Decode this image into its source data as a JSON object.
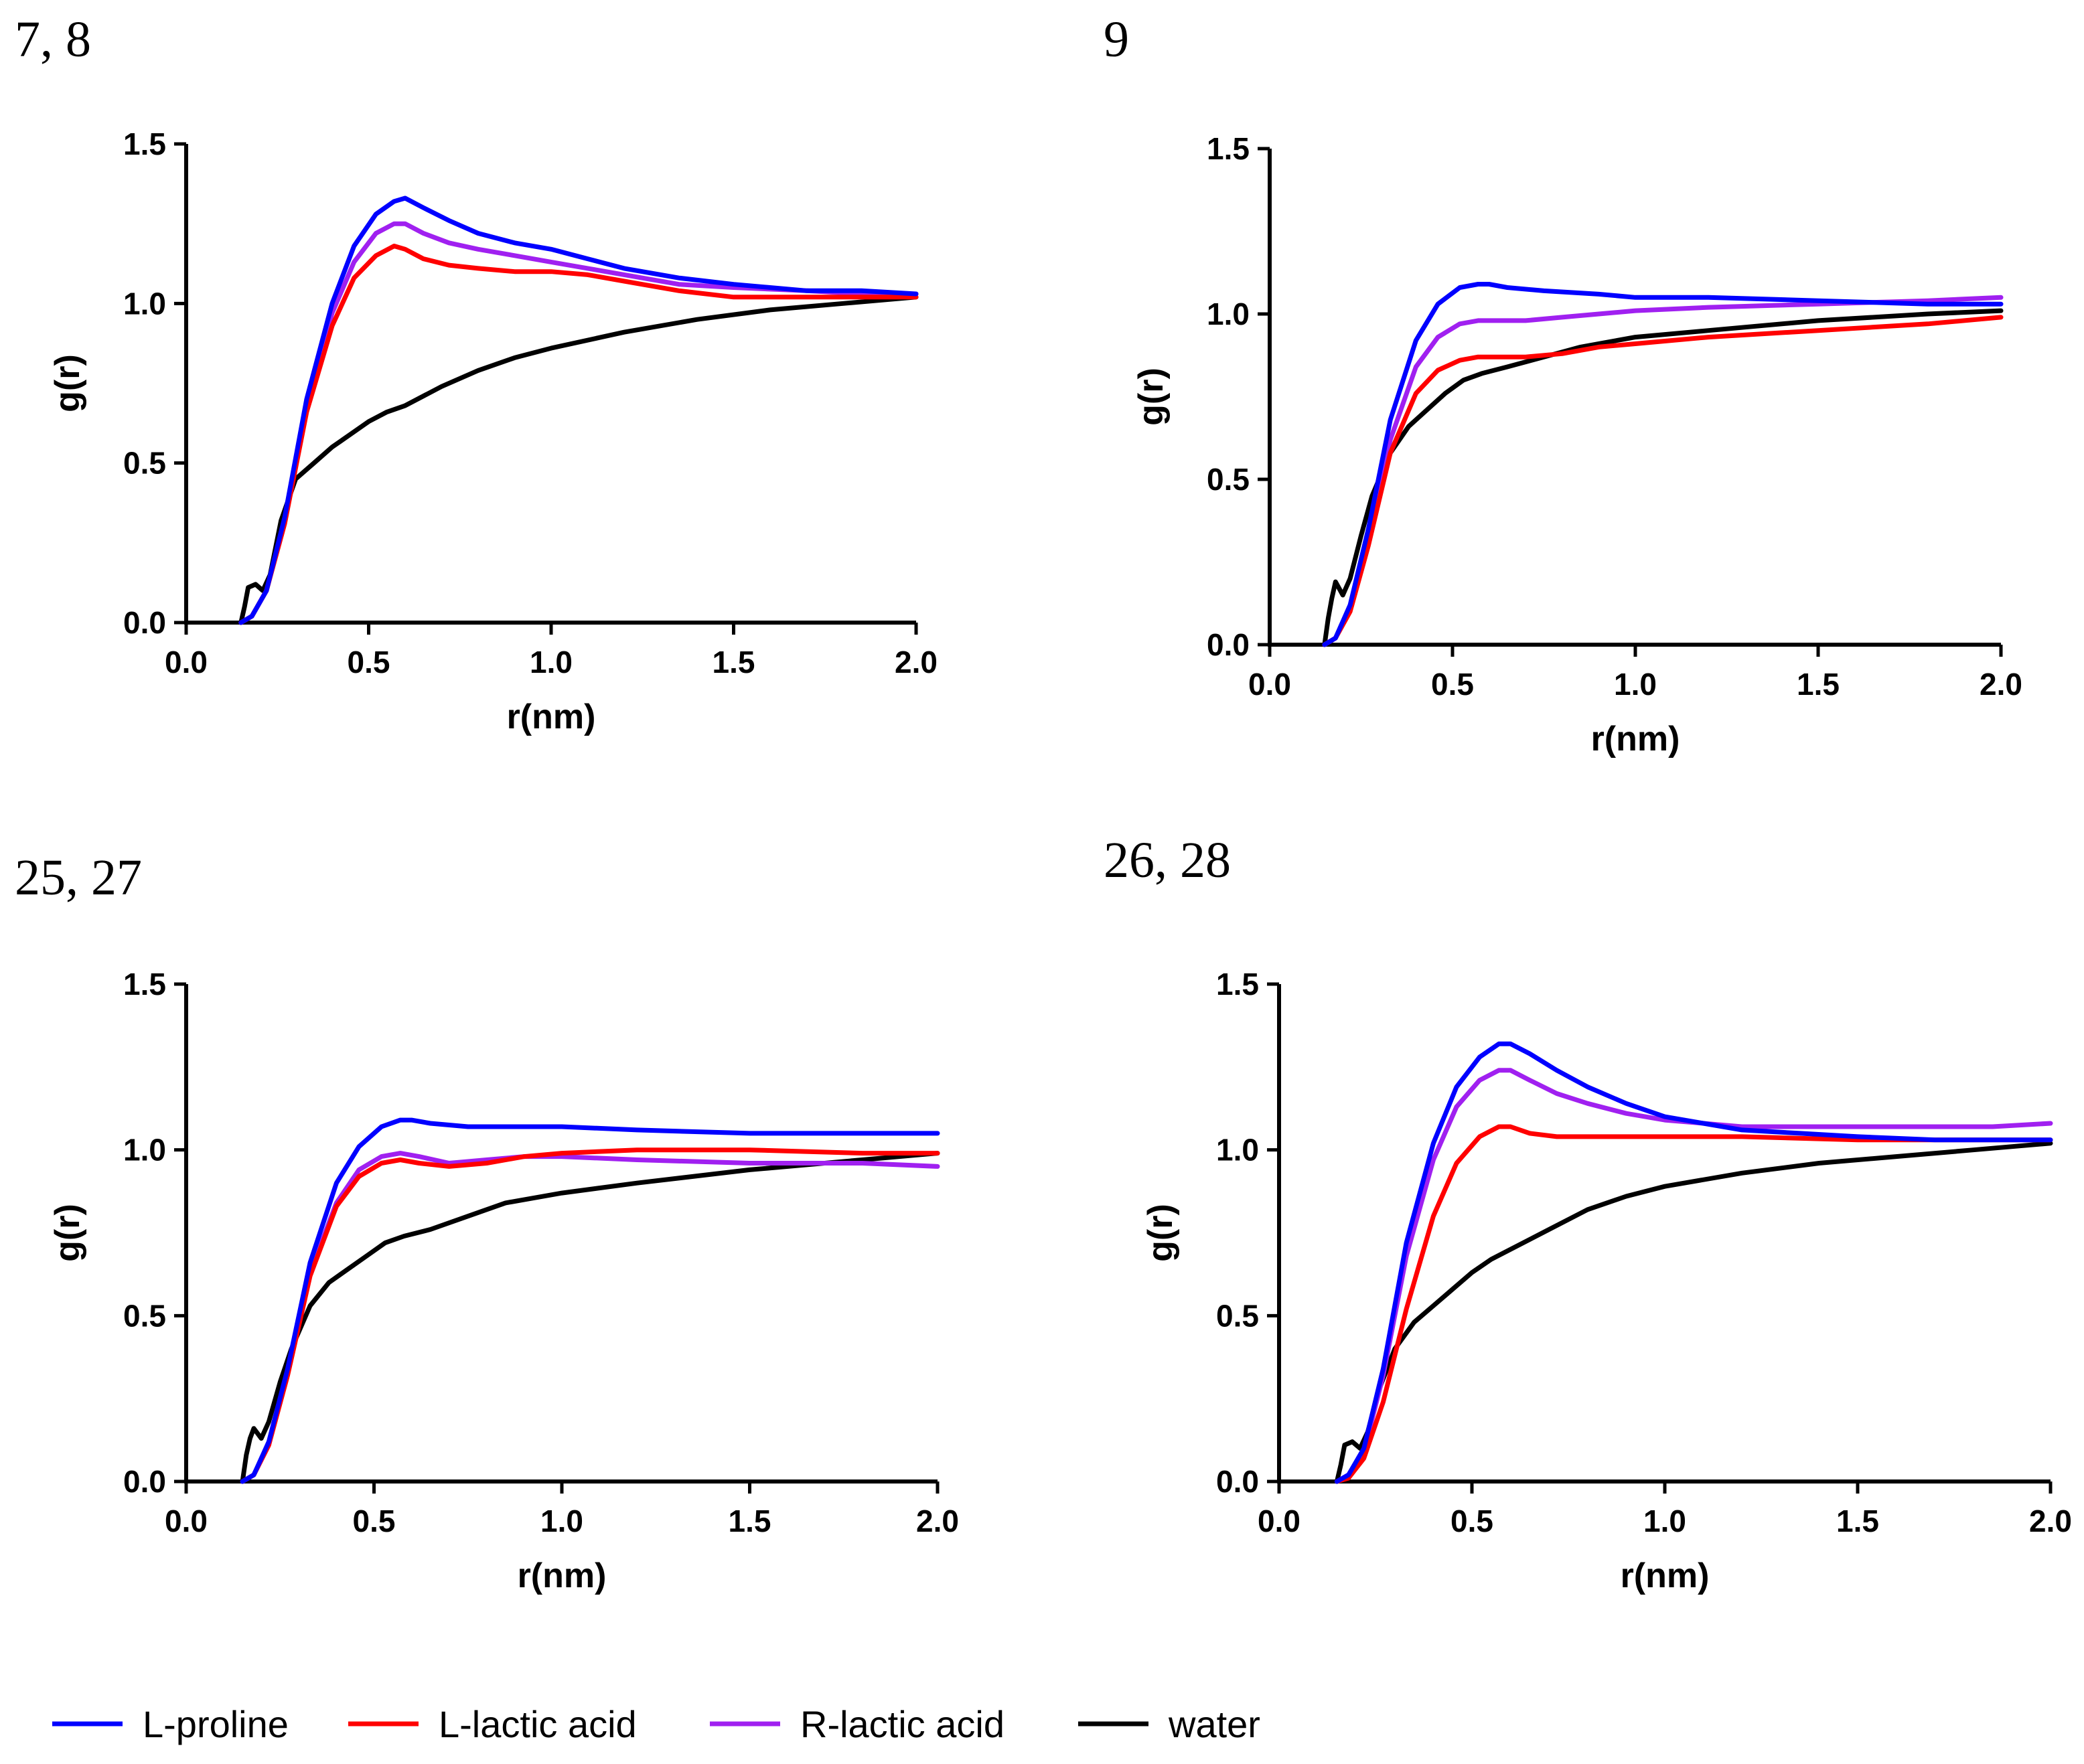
{
  "figure": {
    "legend_label": "Legend"
  },
  "chart_data": [
    {
      "type": "line",
      "panel_label": "7, 8",
      "xlabel": "r(nm)",
      "ylabel": "g(r)",
      "xlim": [
        0,
        2
      ],
      "ylim": [
        0,
        1.5
      ],
      "xticks": [
        "0.0",
        "0.5",
        "1.0",
        "1.5",
        "2.0"
      ],
      "yticks": [
        "0.0",
        "0.5",
        "1.0",
        "1.5"
      ],
      "series": [
        {
          "name": "L-proline",
          "color": "#0000ff",
          "x": [
            0.15,
            0.18,
            0.22,
            0.27,
            0.33,
            0.4,
            0.46,
            0.52,
            0.57,
            0.6,
            0.65,
            0.72,
            0.8,
            0.9,
            1.0,
            1.1,
            1.2,
            1.35,
            1.5,
            1.7,
            1.85,
            2.0
          ],
          "y": [
            0.0,
            0.02,
            0.1,
            0.33,
            0.7,
            1.0,
            1.18,
            1.28,
            1.32,
            1.33,
            1.3,
            1.26,
            1.22,
            1.19,
            1.17,
            1.14,
            1.11,
            1.08,
            1.06,
            1.04,
            1.04,
            1.03
          ]
        },
        {
          "name": "L-lactic acid",
          "color": "#ff0000",
          "x": [
            0.15,
            0.18,
            0.22,
            0.27,
            0.33,
            0.4,
            0.46,
            0.52,
            0.57,
            0.6,
            0.65,
            0.72,
            0.8,
            0.9,
            1.0,
            1.1,
            1.2,
            1.35,
            1.5,
            1.7,
            1.85,
            2.0
          ],
          "y": [
            0.0,
            0.02,
            0.1,
            0.31,
            0.66,
            0.93,
            1.08,
            1.15,
            1.18,
            1.17,
            1.14,
            1.12,
            1.11,
            1.1,
            1.1,
            1.09,
            1.07,
            1.04,
            1.02,
            1.02,
            1.02,
            1.02
          ]
        },
        {
          "name": "R-lactic acid",
          "color": "#a020f0",
          "x": [
            0.15,
            0.18,
            0.22,
            0.27,
            0.33,
            0.4,
            0.46,
            0.52,
            0.57,
            0.6,
            0.65,
            0.72,
            0.8,
            0.9,
            1.0,
            1.1,
            1.2,
            1.35,
            1.5,
            1.7,
            1.85,
            2.0
          ],
          "y": [
            0.0,
            0.02,
            0.1,
            0.32,
            0.68,
            0.97,
            1.13,
            1.22,
            1.25,
            1.25,
            1.22,
            1.19,
            1.17,
            1.15,
            1.13,
            1.11,
            1.09,
            1.06,
            1.05,
            1.04,
            1.03,
            1.03
          ]
        },
        {
          "name": "water",
          "color": "#000000",
          "x": [
            0.15,
            0.16,
            0.17,
            0.19,
            0.21,
            0.23,
            0.26,
            0.3,
            0.35,
            0.4,
            0.45,
            0.5,
            0.55,
            0.6,
            0.7,
            0.8,
            0.9,
            1.0,
            1.2,
            1.4,
            1.6,
            1.8,
            2.0
          ],
          "y": [
            0.0,
            0.05,
            0.11,
            0.12,
            0.1,
            0.15,
            0.32,
            0.45,
            0.5,
            0.55,
            0.59,
            0.63,
            0.66,
            0.68,
            0.74,
            0.79,
            0.83,
            0.86,
            0.91,
            0.95,
            0.98,
            1.0,
            1.02
          ]
        }
      ]
    },
    {
      "type": "line",
      "panel_label": "9",
      "xlabel": "r(nm)",
      "ylabel": "g(r)",
      "xlim": [
        0,
        2
      ],
      "ylim": [
        0,
        1.5
      ],
      "xticks": [
        "0.0",
        "0.5",
        "1.0",
        "1.5",
        "2.0"
      ],
      "yticks": [
        "0.0",
        "0.5",
        "1.0",
        "1.5"
      ],
      "series": [
        {
          "name": "L-proline",
          "color": "#0000ff",
          "x": [
            0.15,
            0.18,
            0.22,
            0.27,
            0.33,
            0.4,
            0.46,
            0.52,
            0.57,
            0.6,
            0.65,
            0.75,
            0.9,
            1.0,
            1.2,
            1.5,
            1.8,
            2.0
          ],
          "y": [
            0.0,
            0.02,
            0.12,
            0.35,
            0.68,
            0.92,
            1.03,
            1.08,
            1.09,
            1.09,
            1.08,
            1.07,
            1.06,
            1.05,
            1.05,
            1.04,
            1.03,
            1.03
          ]
        },
        {
          "name": "L-lactic acid",
          "color": "#ff0000",
          "x": [
            0.15,
            0.18,
            0.22,
            0.27,
            0.33,
            0.4,
            0.46,
            0.52,
            0.57,
            0.6,
            0.7,
            0.8,
            0.9,
            1.0,
            1.2,
            1.5,
            1.8,
            2.0
          ],
          "y": [
            0.0,
            0.02,
            0.1,
            0.3,
            0.58,
            0.76,
            0.83,
            0.86,
            0.87,
            0.87,
            0.87,
            0.88,
            0.9,
            0.91,
            0.93,
            0.95,
            0.97,
            0.99
          ]
        },
        {
          "name": "R-lactic acid",
          "color": "#a020f0",
          "x": [
            0.15,
            0.18,
            0.22,
            0.27,
            0.33,
            0.4,
            0.46,
            0.52,
            0.57,
            0.6,
            0.7,
            0.8,
            0.9,
            1.0,
            1.2,
            1.5,
            1.8,
            2.0
          ],
          "y": [
            0.0,
            0.02,
            0.11,
            0.32,
            0.62,
            0.84,
            0.93,
            0.97,
            0.98,
            0.98,
            0.98,
            0.99,
            1.0,
            1.01,
            1.02,
            1.03,
            1.04,
            1.05
          ]
        },
        {
          "name": "water",
          "color": "#000000",
          "x": [
            0.15,
            0.16,
            0.17,
            0.18,
            0.2,
            0.22,
            0.25,
            0.28,
            0.33,
            0.38,
            0.43,
            0.48,
            0.53,
            0.58,
            0.65,
            0.75,
            0.85,
            1.0,
            1.2,
            1.5,
            1.8,
            2.0
          ],
          "y": [
            0.0,
            0.08,
            0.14,
            0.19,
            0.15,
            0.2,
            0.33,
            0.45,
            0.58,
            0.66,
            0.71,
            0.76,
            0.8,
            0.82,
            0.84,
            0.87,
            0.9,
            0.93,
            0.95,
            0.98,
            1.0,
            1.01
          ]
        }
      ]
    },
    {
      "type": "line",
      "panel_label": "25, 27",
      "xlabel": "r(nm)",
      "ylabel": "g(r)",
      "xlim": [
        0,
        2
      ],
      "ylim": [
        0,
        1.5
      ],
      "xticks": [
        "0.0",
        "0.5",
        "1.0",
        "1.5",
        "2.0"
      ],
      "yticks": [
        "0.0",
        "0.5",
        "1.0",
        "1.5"
      ],
      "series": [
        {
          "name": "L-proline",
          "color": "#0000ff",
          "x": [
            0.15,
            0.18,
            0.22,
            0.27,
            0.33,
            0.4,
            0.46,
            0.52,
            0.57,
            0.6,
            0.65,
            0.75,
            0.9,
            1.0,
            1.2,
            1.5,
            1.8,
            2.0
          ],
          "y": [
            0.0,
            0.02,
            0.12,
            0.34,
            0.66,
            0.9,
            1.01,
            1.07,
            1.09,
            1.09,
            1.08,
            1.07,
            1.07,
            1.07,
            1.06,
            1.05,
            1.05,
            1.05
          ]
        },
        {
          "name": "L-lactic acid",
          "color": "#ff0000",
          "x": [
            0.15,
            0.18,
            0.22,
            0.27,
            0.33,
            0.4,
            0.46,
            0.52,
            0.57,
            0.62,
            0.7,
            0.8,
            0.9,
            1.0,
            1.2,
            1.5,
            1.8,
            2.0
          ],
          "y": [
            0.0,
            0.02,
            0.11,
            0.32,
            0.62,
            0.83,
            0.92,
            0.96,
            0.97,
            0.96,
            0.95,
            0.96,
            0.98,
            0.99,
            1.0,
            1.0,
            0.99,
            0.99
          ]
        },
        {
          "name": "R-lactic acid",
          "color": "#a020f0",
          "x": [
            0.15,
            0.18,
            0.22,
            0.27,
            0.33,
            0.4,
            0.46,
            0.52,
            0.57,
            0.62,
            0.7,
            0.8,
            0.9,
            1.0,
            1.2,
            1.5,
            1.8,
            2.0
          ],
          "y": [
            0.0,
            0.02,
            0.11,
            0.33,
            0.63,
            0.84,
            0.94,
            0.98,
            0.99,
            0.98,
            0.96,
            0.97,
            0.98,
            0.98,
            0.97,
            0.96,
            0.96,
            0.95
          ]
        },
        {
          "name": "water",
          "color": "#000000",
          "x": [
            0.15,
            0.16,
            0.17,
            0.18,
            0.2,
            0.22,
            0.25,
            0.28,
            0.33,
            0.38,
            0.43,
            0.48,
            0.53,
            0.58,
            0.65,
            0.75,
            0.85,
            1.0,
            1.2,
            1.5,
            1.8,
            2.0
          ],
          "y": [
            0.0,
            0.08,
            0.13,
            0.16,
            0.13,
            0.18,
            0.3,
            0.4,
            0.53,
            0.6,
            0.64,
            0.68,
            0.72,
            0.74,
            0.76,
            0.8,
            0.84,
            0.87,
            0.9,
            0.94,
            0.97,
            0.99
          ]
        }
      ]
    },
    {
      "type": "line",
      "panel_label": "26, 28",
      "xlabel": "r(nm)",
      "ylabel": "g(r)",
      "xlim": [
        0,
        2
      ],
      "ylim": [
        0,
        1.5
      ],
      "xticks": [
        "0.0",
        "0.5",
        "1.0",
        "1.5",
        "2.0"
      ],
      "yticks": [
        "0.0",
        "0.5",
        "1.0",
        "1.5"
      ],
      "series": [
        {
          "name": "L-proline",
          "color": "#0000ff",
          "x": [
            0.15,
            0.18,
            0.22,
            0.27,
            0.33,
            0.4,
            0.46,
            0.52,
            0.57,
            0.6,
            0.65,
            0.72,
            0.8,
            0.9,
            1.0,
            1.1,
            1.2,
            1.35,
            1.5,
            1.7,
            1.85,
            2.0
          ],
          "y": [
            0.0,
            0.02,
            0.1,
            0.34,
            0.72,
            1.02,
            1.19,
            1.28,
            1.32,
            1.32,
            1.29,
            1.24,
            1.19,
            1.14,
            1.1,
            1.08,
            1.06,
            1.05,
            1.04,
            1.03,
            1.03,
            1.03
          ]
        },
        {
          "name": "L-lactic acid",
          "color": "#ff0000",
          "x": [
            0.15,
            0.18,
            0.22,
            0.27,
            0.33,
            0.4,
            0.46,
            0.52,
            0.57,
            0.6,
            0.65,
            0.72,
            0.8,
            0.9,
            1.0,
            1.2,
            1.5,
            1.8,
            2.0
          ],
          "y": [
            0.0,
            0.01,
            0.07,
            0.24,
            0.52,
            0.8,
            0.96,
            1.04,
            1.07,
            1.07,
            1.05,
            1.04,
            1.04,
            1.04,
            1.04,
            1.04,
            1.03,
            1.03,
            1.03
          ]
        },
        {
          "name": "R-lactic acid",
          "color": "#a020f0",
          "x": [
            0.15,
            0.18,
            0.22,
            0.27,
            0.33,
            0.4,
            0.46,
            0.52,
            0.57,
            0.6,
            0.65,
            0.72,
            0.8,
            0.9,
            1.0,
            1.1,
            1.2,
            1.35,
            1.5,
            1.7,
            1.85,
            2.0
          ],
          "y": [
            0.0,
            0.02,
            0.09,
            0.32,
            0.68,
            0.97,
            1.13,
            1.21,
            1.24,
            1.24,
            1.21,
            1.17,
            1.14,
            1.11,
            1.09,
            1.08,
            1.07,
            1.07,
            1.07,
            1.07,
            1.07,
            1.08
          ]
        },
        {
          "name": "water",
          "color": "#000000",
          "x": [
            0.15,
            0.16,
            0.17,
            0.19,
            0.21,
            0.23,
            0.26,
            0.3,
            0.35,
            0.4,
            0.45,
            0.5,
            0.55,
            0.6,
            0.7,
            0.8,
            0.9,
            1.0,
            1.2,
            1.4,
            1.6,
            1.8,
            2.0
          ],
          "y": [
            0.0,
            0.05,
            0.11,
            0.12,
            0.1,
            0.15,
            0.28,
            0.4,
            0.48,
            0.53,
            0.58,
            0.63,
            0.67,
            0.7,
            0.76,
            0.82,
            0.86,
            0.89,
            0.93,
            0.96,
            0.98,
            1.0,
            1.02
          ]
        }
      ]
    }
  ]
}
